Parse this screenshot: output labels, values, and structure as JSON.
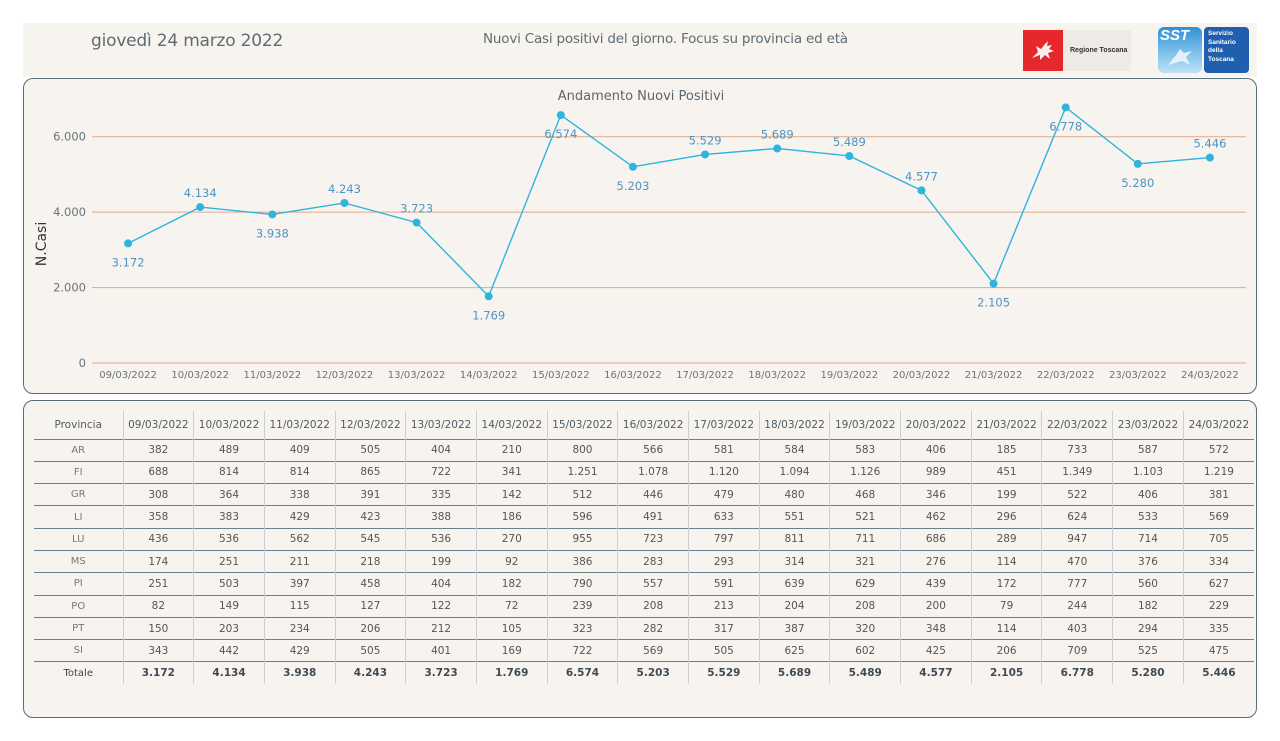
{
  "header": {
    "date": "giovedì 24 marzo 2022",
    "title": "Nuovi Casi positivi del giorno. Focus su provincia ed età",
    "logos": [
      {
        "icon": "pegasus-flag-icon",
        "label": "Regione Toscana",
        "color": "#e4282c"
      },
      {
        "icon": "sst-logo-icon",
        "short": "SST",
        "label_lines": [
          "Servizio",
          "Sanitario",
          "della",
          "Toscana"
        ],
        "color": "#1f5fae"
      }
    ]
  },
  "chart_data": {
    "type": "line",
    "title": "Andamento Nuovi Positivi",
    "xlabel": "",
    "ylabel": "N.Casi",
    "ylim": [
      0,
      7000
    ],
    "yticks": [
      0,
      2000,
      4000,
      6000
    ],
    "ytick_labels": [
      "0",
      "2.000",
      "4.000",
      "6.000"
    ],
    "grid": true,
    "line_color": "#2eb4dd",
    "grid_color": "#e0a98a",
    "categories": [
      "09/03/2022",
      "10/03/2022",
      "11/03/2022",
      "12/03/2022",
      "13/03/2022",
      "14/03/2022",
      "15/03/2022",
      "16/03/2022",
      "17/03/2022",
      "18/03/2022",
      "19/03/2022",
      "20/03/2022",
      "21/03/2022",
      "22/03/2022",
      "23/03/2022",
      "24/03/2022"
    ],
    "series": [
      {
        "name": "Nuovi Positivi",
        "values": [
          3172,
          4134,
          3938,
          4243,
          3723,
          1769,
          6574,
          5203,
          5529,
          5689,
          5489,
          4577,
          2105,
          6778,
          5280,
          5446
        ],
        "labels": [
          "3.172",
          "4.134",
          "3.938",
          "4.243",
          "3.723",
          "1.769",
          "6.574",
          "5.203",
          "5.529",
          "5.689",
          "5.489",
          "4.577",
          "2.105",
          "6.778",
          "5.280",
          "5.446"
        ],
        "label_positions": [
          "below",
          "above",
          "below",
          "above",
          "above",
          "below",
          "below",
          "below",
          "above",
          "above",
          "above",
          "above",
          "below",
          "below",
          "below",
          "above"
        ]
      }
    ]
  },
  "table": {
    "header": [
      "Provincia",
      "09/03/2022",
      "10/03/2022",
      "11/03/2022",
      "12/03/2022",
      "13/03/2022",
      "14/03/2022",
      "15/03/2022",
      "16/03/2022",
      "17/03/2022",
      "18/03/2022",
      "19/03/2022",
      "20/03/2022",
      "21/03/2022",
      "22/03/2022",
      "23/03/2022",
      "24/03/2022"
    ],
    "rows": [
      [
        "AR",
        "382",
        "489",
        "409",
        "505",
        "404",
        "210",
        "800",
        "566",
        "581",
        "584",
        "583",
        "406",
        "185",
        "733",
        "587",
        "572"
      ],
      [
        "FI",
        "688",
        "814",
        "814",
        "865",
        "722",
        "341",
        "1.251",
        "1.078",
        "1.120",
        "1.094",
        "1.126",
        "989",
        "451",
        "1.349",
        "1.103",
        "1.219"
      ],
      [
        "GR",
        "308",
        "364",
        "338",
        "391",
        "335",
        "142",
        "512",
        "446",
        "479",
        "480",
        "468",
        "346",
        "199",
        "522",
        "406",
        "381"
      ],
      [
        "LI",
        "358",
        "383",
        "429",
        "423",
        "388",
        "186",
        "596",
        "491",
        "633",
        "551",
        "521",
        "462",
        "296",
        "624",
        "533",
        "569"
      ],
      [
        "LU",
        "436",
        "536",
        "562",
        "545",
        "536",
        "270",
        "955",
        "723",
        "797",
        "811",
        "711",
        "686",
        "289",
        "947",
        "714",
        "705"
      ],
      [
        "MS",
        "174",
        "251",
        "211",
        "218",
        "199",
        "92",
        "386",
        "283",
        "293",
        "314",
        "321",
        "276",
        "114",
        "470",
        "376",
        "334"
      ],
      [
        "PI",
        "251",
        "503",
        "397",
        "458",
        "404",
        "182",
        "790",
        "557",
        "591",
        "639",
        "629",
        "439",
        "172",
        "777",
        "560",
        "627"
      ],
      [
        "PO",
        "82",
        "149",
        "115",
        "127",
        "122",
        "72",
        "239",
        "208",
        "213",
        "204",
        "208",
        "200",
        "79",
        "244",
        "182",
        "229"
      ],
      [
        "PT",
        "150",
        "203",
        "234",
        "206",
        "212",
        "105",
        "323",
        "282",
        "317",
        "387",
        "320",
        "348",
        "114",
        "403",
        "294",
        "335"
      ],
      [
        "SI",
        "343",
        "442",
        "429",
        "505",
        "401",
        "169",
        "722",
        "569",
        "505",
        "625",
        "602",
        "425",
        "206",
        "709",
        "525",
        "475"
      ]
    ],
    "total": [
      "Totale",
      "3.172",
      "4.134",
      "3.938",
      "4.243",
      "3.723",
      "1.769",
      "6.574",
      "5.203",
      "5.529",
      "5.689",
      "5.489",
      "4.577",
      "2.105",
      "6.778",
      "5.280",
      "5.446"
    ]
  }
}
